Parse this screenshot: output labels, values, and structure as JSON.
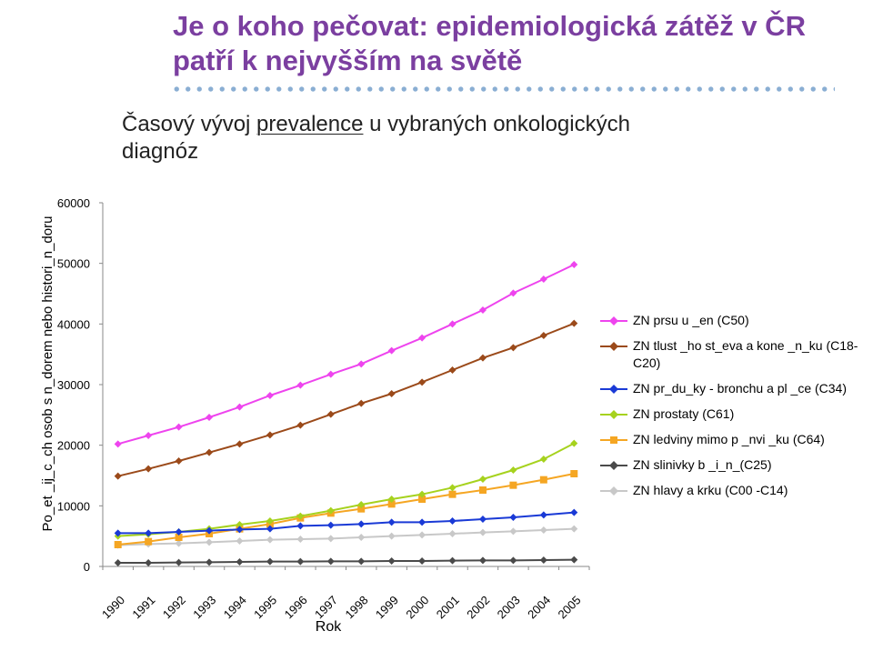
{
  "header": {
    "title": "Je o koho pečovat: epidemiologická zátěž v ČR patří k nejvyšším na světě"
  },
  "subtitle": {
    "before": "Časový vývoj ",
    "link": "prevalence",
    "after": " u vybraných onkologických diagnóz"
  },
  "chart_data": {
    "type": "line",
    "xlabel": "Rok",
    "ylabel": "Po_et _ij_c_ch osob s n_dorem nebo histori_n_doru",
    "ylim": [
      0,
      60000
    ],
    "yticks": [
      0,
      10000,
      20000,
      30000,
      40000,
      50000,
      60000
    ],
    "legend_position": "right",
    "grid": false,
    "x": [
      "1990",
      "1991",
      "1992",
      "1993",
      "1994",
      "1995",
      "1996",
      "1997",
      "1998",
      "1999",
      "2000",
      "2001",
      "2002",
      "2003",
      "2004",
      "2005"
    ],
    "series": [
      {
        "name": "ZN prsu u _en (C50)",
        "color": "#ee44ee",
        "marker": "diamond",
        "values": [
          20200,
          21600,
          23000,
          24600,
          26300,
          28200,
          29900,
          31700,
          33400,
          35600,
          37700,
          40000,
          42300,
          45100,
          47400,
          49800
        ]
      },
      {
        "name": "ZN tlust _ho st_eva a kone _n_ku (C18-C20)",
        "color": "#9b4a1a",
        "marker": "diamond",
        "values": [
          14900,
          16100,
          17400,
          18800,
          20200,
          21700,
          23300,
          25100,
          26900,
          28500,
          30400,
          32400,
          34400,
          36100,
          38100,
          40100
        ]
      },
      {
        "name": "ZN pr_du_ky - bronchu a pl _ce (C34)",
        "color": "#1a3ad6",
        "marker": "diamond",
        "values": [
          5500,
          5500,
          5700,
          5900,
          6100,
          6200,
          6700,
          6800,
          7000,
          7300,
          7300,
          7500,
          7800,
          8100,
          8500,
          8900
        ]
      },
      {
        "name": "ZN prostaty (C61)",
        "color": "#a6d21e",
        "marker": "diamond",
        "values": [
          5000,
          5300,
          5700,
          6200,
          6900,
          7500,
          8300,
          9200,
          10200,
          11100,
          11900,
          13000,
          14400,
          15900,
          17700,
          20300
        ]
      },
      {
        "name": "ZN ledviny mimo p _nvi _ku (C64)",
        "color": "#f5a623",
        "marker": "square",
        "values": [
          3600,
          4100,
          4800,
          5400,
          6200,
          7000,
          8000,
          8800,
          9500,
          10300,
          11100,
          11900,
          12600,
          13400,
          14300,
          15300
        ]
      },
      {
        "name": "ZN slinivky b _i_n_(C25)",
        "color": "#4a4a4a",
        "marker": "diamond",
        "values": [
          600,
          600,
          650,
          700,
          750,
          800,
          800,
          850,
          850,
          900,
          900,
          950,
          1000,
          1000,
          1050,
          1100
        ]
      },
      {
        "name": "ZN hlavy a krku (C00 -C14)",
        "color": "#c8c8c8",
        "marker": "diamond",
        "values": [
          3500,
          3700,
          3800,
          4000,
          4200,
          4400,
          4500,
          4600,
          4800,
          5000,
          5200,
          5400,
          5600,
          5800,
          6000,
          6200
        ]
      }
    ]
  }
}
